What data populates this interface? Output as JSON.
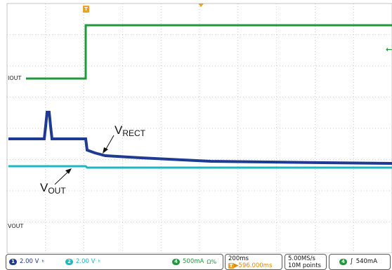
{
  "colors": {
    "grid": "#a0a0a0",
    "ch1": "#1f3a93",
    "ch2": "#19b8c4",
    "ch4": "#1e9a3a",
    "trigger": "#f0a020"
  },
  "markers": {
    "trigger_top": "T",
    "ch4_ref_arrow": "←"
  },
  "labels": {
    "iout": "IOUT",
    "vout_trace": "VOUT",
    "vrect_main": "V",
    "vrect_sub": "RECT",
    "vout_main": "V",
    "vout_sub": "OUT"
  },
  "status": {
    "ch1_num": "1",
    "ch1_scale": "2.00 V",
    "ch1_icon": "bandwidth-limit-icon",
    "ch2_num": "2",
    "ch2_scale": "2.00 V",
    "ch2_icon": "bandwidth-limit-icon",
    "ch4_num": "4",
    "ch4_scale": "500mA",
    "ch4_suffix": "Ω%",
    "timebase": "200ms",
    "trigger_pos": "▶596.000ms",
    "trigger_prefix": "T",
    "sample_rate": "5.00MS/s",
    "record_len": "10M points",
    "trig_ch": "4",
    "trig_slope": "∫",
    "trig_level": "540mA"
  }
}
